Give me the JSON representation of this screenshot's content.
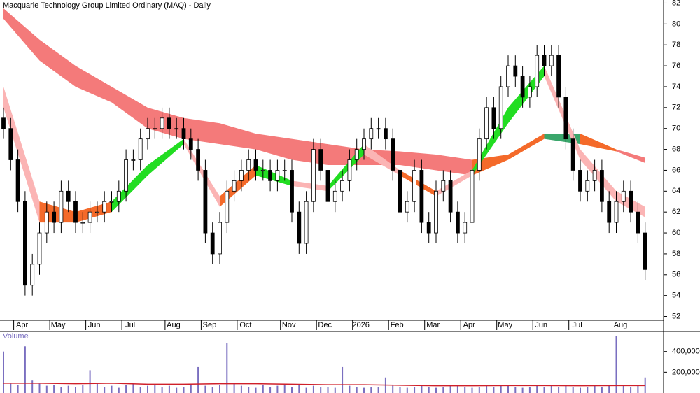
{
  "chart_data": {
    "type": "candlestick",
    "title": "Macquarie Technology Group Limited Ordinary (MAQ) - Daily",
    "categories": [
      null,
      null,
      "Apr",
      null,
      null,
      null,
      null,
      "May",
      null,
      null,
      null,
      null,
      "Jun",
      null,
      null,
      null,
      null,
      "Jul",
      null,
      null,
      null,
      null,
      null,
      "Aug",
      null,
      null,
      null,
      null,
      "Sep",
      null,
      null,
      null,
      null,
      "Oct",
      null,
      null,
      null,
      null,
      null,
      "Nov",
      null,
      null,
      null,
      null,
      "Dec",
      null,
      null,
      null,
      null,
      "2026",
      null,
      null,
      null,
      null,
      "Feb",
      null,
      null,
      null,
      null,
      "Mar",
      null,
      null,
      null,
      null,
      "Apr",
      null,
      null,
      null,
      null,
      "May",
      null,
      null,
      null,
      null,
      "Jun",
      null,
      null,
      null,
      null,
      "Jul",
      null,
      null,
      null,
      null,
      null,
      "Aug",
      null,
      null,
      null,
      null
    ],
    "open": [
      71,
      70,
      67,
      63,
      55,
      57,
      60,
      62,
      61,
      64,
      63,
      61,
      61,
      62,
      62,
      63,
      63,
      64,
      67,
      67,
      69,
      70,
      70,
      71,
      70,
      70,
      69,
      68,
      66,
      60,
      58,
      61,
      64,
      65,
      66,
      67,
      66,
      66,
      65,
      66,
      66,
      62,
      59,
      63,
      68,
      66,
      63,
      64,
      65,
      67,
      68,
      69,
      70,
      70,
      69,
      66,
      62,
      63,
      66,
      61,
      60,
      64,
      65,
      62,
      60,
      61,
      66,
      69,
      72,
      70,
      74,
      76,
      75,
      73,
      74,
      77,
      76,
      77,
      73,
      69,
      66,
      64,
      65,
      66,
      63,
      61,
      63,
      64,
      62,
      60
    ],
    "high": [
      72,
      71,
      68,
      64,
      58,
      61,
      63,
      63,
      65,
      65,
      64,
      62,
      63,
      63,
      64,
      64,
      65,
      68,
      68,
      70,
      71,
      71,
      72,
      72,
      71,
      71,
      70,
      69,
      67,
      61,
      62,
      65,
      66,
      67,
      68,
      68,
      67,
      67,
      67,
      67,
      67,
      63,
      64,
      69,
      69,
      67,
      65,
      66,
      68,
      69,
      70,
      71,
      71,
      71,
      70,
      67,
      64,
      67,
      67,
      62,
      65,
      66,
      66,
      63,
      62,
      67,
      70,
      73,
      73,
      75,
      77,
      77,
      76,
      75,
      78,
      78,
      78,
      78,
      74,
      70,
      67,
      66,
      67,
      67,
      64,
      64,
      65,
      65,
      63,
      61
    ],
    "low": [
      69,
      66,
      62,
      54,
      54,
      56,
      59,
      60,
      60,
      62,
      60,
      60,
      60,
      61,
      61,
      62,
      62,
      63,
      66,
      66,
      68,
      69,
      69,
      69,
      69,
      68,
      67,
      65,
      59,
      57,
      57,
      60,
      63,
      64,
      65,
      65,
      65,
      64,
      64,
      65,
      61,
      58,
      58,
      62,
      65,
      62,
      62,
      63,
      64,
      66,
      67,
      68,
      69,
      68,
      65,
      61,
      61,
      62,
      60,
      59,
      59,
      63,
      61,
      59,
      59,
      60,
      65,
      68,
      69,
      69,
      73,
      74,
      72,
      72,
      73,
      75,
      75,
      72,
      68,
      65,
      63,
      63,
      64,
      62,
      60,
      60,
      62,
      61,
      59,
      55.5
    ],
    "close": [
      70,
      67,
      63,
      55,
      57,
      60,
      62,
      61,
      64,
      63,
      61,
      61,
      62,
      62,
      63,
      63,
      64,
      67,
      67,
      69,
      70,
      70,
      71,
      70,
      70,
      69,
      68,
      66,
      60,
      58,
      61,
      64,
      65,
      66,
      67,
      66,
      66,
      65,
      66,
      66,
      62,
      59,
      63,
      68,
      66,
      63,
      64,
      65,
      67,
      68,
      69,
      70,
      70,
      69,
      66,
      62,
      63,
      66,
      61,
      60,
      64,
      65,
      62,
      60,
      61,
      66,
      69,
      72,
      70,
      74,
      76,
      75,
      73,
      74,
      77,
      76,
      77,
      73,
      69,
      66,
      64,
      65,
      66,
      63,
      61,
      63,
      64,
      62,
      60,
      56.5
    ],
    "ylim": [
      51.5,
      82.3
    ],
    "yticks": [
      52,
      54,
      56,
      58,
      60,
      62,
      64,
      66,
      68,
      70,
      72,
      74,
      76,
      78,
      80,
      82
    ],
    "band_x": [
      0,
      5,
      10,
      15,
      20,
      25,
      30,
      35,
      40,
      45,
      50,
      55,
      60,
      65,
      70,
      75,
      80,
      85,
      89
    ],
    "ribbons": [
      {
        "upper": [
          81.5,
          78.5,
          76,
          74,
          72,
          71,
          70.5,
          69.5,
          69,
          68.5,
          68,
          67.8,
          67.5,
          67,
          67.5,
          69.5,
          69.5,
          68,
          67.2
        ],
        "lower": [
          80.5,
          76.5,
          74,
          72.5,
          70,
          69,
          68.5,
          68,
          67,
          66.5,
          66.5,
          66.5,
          66,
          65.5,
          67,
          69,
          68.5,
          67.8,
          66.7
        ],
        "colors": [
          "#f47a7a",
          "#f47a7a",
          "#f47a7a",
          "#f47a7a",
          "#f47a7a",
          "#f47a7a",
          "#f47a7a",
          "#f47a7a",
          "#f47a7a",
          "#f47a7a",
          "#f47a7a",
          "#f47a7a",
          "#f47a7a",
          "#f46a2a",
          "#f46a2a",
          "#3aa66b",
          "#f46a2a",
          "#f47a7a"
        ]
      },
      {
        "upper": [
          74,
          63,
          62,
          63,
          66.5,
          69,
          63.5,
          66.5,
          65,
          64.5,
          68.5,
          66,
          64,
          66,
          72,
          76,
          68,
          64,
          62.5
        ],
        "lower": [
          72,
          61,
          61,
          62,
          65.5,
          68.5,
          62.5,
          65.5,
          64.5,
          64,
          67.5,
          65.5,
          63.5,
          65.5,
          70.5,
          75,
          67,
          63,
          61.5
        ],
        "colors": [
          "#fbb4b4",
          "#f46a2a",
          "#f46a2a",
          "#22dd22",
          "#22dd22",
          "#fbb4b4",
          "#f46a2a",
          "#22dd22",
          "#fbb4b4",
          "#22dd22",
          "#fbb4b4",
          "#f46a2a",
          "#fbb4b4",
          "#22dd22",
          "#22dd22",
          "#fbb4b4",
          "#fbb4b4",
          "#fbb4b4"
        ]
      }
    ],
    "volume": {
      "label": "Volume",
      "color": "#7a6fc0",
      "avg_color": "#d0202a",
      "values": [
        400000,
        90000,
        80000,
        450000,
        120000,
        90000,
        70000,
        80000,
        60000,
        70000,
        60000,
        80000,
        220000,
        90000,
        60000,
        70000,
        50000,
        80000,
        90000,
        60000,
        70000,
        80000,
        60000,
        70000,
        50000,
        60000,
        90000,
        250000,
        70000,
        60000,
        80000,
        480000,
        90000,
        70000,
        60000,
        50000,
        80000,
        60000,
        70000,
        90000,
        60000,
        80000,
        50000,
        70000,
        60000,
        60000,
        50000,
        250000,
        70000,
        60000,
        50000,
        60000,
        60000,
        150000,
        70000,
        60000,
        50000,
        60000,
        70000,
        60000,
        50000,
        60000,
        70000,
        80000,
        60000,
        50000,
        60000,
        70000,
        60000,
        80000,
        70000,
        60000,
        50000,
        60000,
        70000,
        60000,
        80000,
        60000,
        70000,
        60000,
        50000,
        60000,
        70000,
        60000,
        80000,
        550000,
        70000,
        60000,
        80000,
        150000
      ],
      "avg": [
        95000,
        95000,
        90000,
        95000,
        85000,
        85000,
        90000,
        90000,
        85000,
        80000,
        80000,
        75000,
        70000,
        70000,
        72000,
        72000,
        70000,
        72000,
        72000
      ],
      "ylim": [
        0,
        580000
      ],
      "yticks": [
        {
          "value": 200000,
          "label": "200,000"
        },
        {
          "value": 400000,
          "label": "400,000"
        }
      ]
    }
  }
}
